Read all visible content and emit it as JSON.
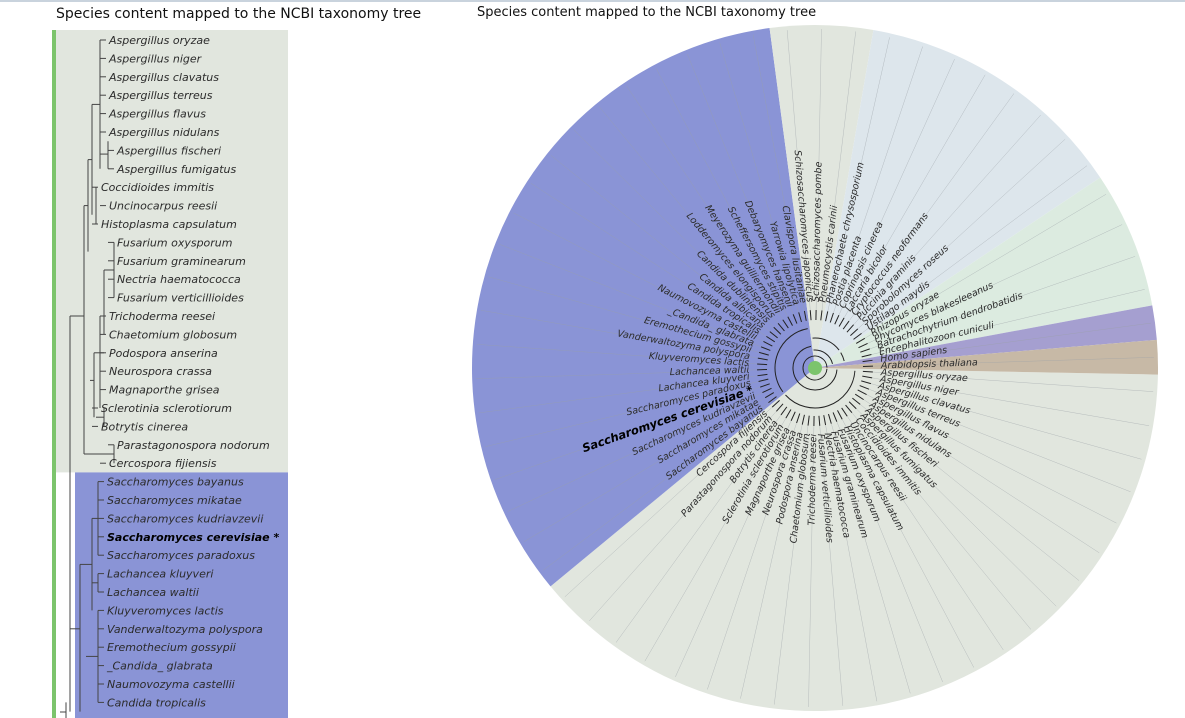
{
  "left_panel": {
    "title": "Species content mapped to the NCBI taxonomy tree",
    "clades": [
      {
        "name": "grey",
        "color": "#e1e6de"
      },
      {
        "name": "blue",
        "color": "#8a94d6"
      }
    ],
    "leaves": [
      {
        "label": "Aspergillus oryzae",
        "clade": 0,
        "depth": 0
      },
      {
        "label": "Aspergillus niger",
        "clade": 0,
        "depth": 0
      },
      {
        "label": "Aspergillus clavatus",
        "clade": 0,
        "depth": 0
      },
      {
        "label": "Aspergillus terreus",
        "clade": 0,
        "depth": 0
      },
      {
        "label": "Aspergillus flavus",
        "clade": 0,
        "depth": 0
      },
      {
        "label": "Aspergillus nidulans",
        "clade": 0,
        "depth": 0
      },
      {
        "label": "Aspergillus fischeri",
        "clade": 0,
        "depth": 1
      },
      {
        "label": "Aspergillus fumigatus",
        "clade": 0,
        "depth": 1
      },
      {
        "label": "Coccidioides immitis",
        "clade": 0,
        "depth": -1
      },
      {
        "label": "Uncinocarpus reesii",
        "clade": 0,
        "depth": 0
      },
      {
        "label": "Histoplasma capsulatum",
        "clade": 0,
        "depth": -1
      },
      {
        "label": "Fusarium oxysporum",
        "clade": 0,
        "depth": 1
      },
      {
        "label": "Fusarium graminearum",
        "clade": 0,
        "depth": 1
      },
      {
        "label": "Nectria haematococca",
        "clade": 0,
        "depth": 1
      },
      {
        "label": "Fusarium verticillioides",
        "clade": 0,
        "depth": 1
      },
      {
        "label": "Trichoderma reesei",
        "clade": 0,
        "depth": 0
      },
      {
        "label": "Chaetomium globosum",
        "clade": 0,
        "depth": 0
      },
      {
        "label": "Podospora anserina",
        "clade": 0,
        "depth": 0
      },
      {
        "label": "Neurospora crassa",
        "clade": 0,
        "depth": 0
      },
      {
        "label": "Magnaporthe grisea",
        "clade": 0,
        "depth": 0
      },
      {
        "label": "Sclerotinia sclerotiorum",
        "clade": 0,
        "depth": -1
      },
      {
        "label": "Botrytis cinerea",
        "clade": 0,
        "depth": -1
      },
      {
        "label": "Parastagonospora nodorum",
        "clade": 0,
        "depth": 1
      },
      {
        "label": "Cercospora fijiensis",
        "clade": 0,
        "depth": 0
      },
      {
        "label": "Saccharomyces bayanus",
        "clade": 1,
        "depth": 0
      },
      {
        "label": "Saccharomyces mikatae",
        "clade": 1,
        "depth": 0
      },
      {
        "label": "Saccharomyces kudriavzevii",
        "clade": 1,
        "depth": 0
      },
      {
        "label": "Saccharomyces cerevisiae *",
        "clade": 1,
        "depth": 0,
        "bold": true
      },
      {
        "label": "Saccharomyces paradoxus",
        "clade": 1,
        "depth": 0
      },
      {
        "label": "Lachancea kluyveri",
        "clade": 1,
        "depth": 0
      },
      {
        "label": "Lachancea waltii",
        "clade": 1,
        "depth": 0
      },
      {
        "label": "Kluyveromyces lactis",
        "clade": 1,
        "depth": 0
      },
      {
        "label": "Vanderwaltozyma polyspora",
        "clade": 1,
        "depth": 0
      },
      {
        "label": "Eremothecium gossypii",
        "clade": 1,
        "depth": 0
      },
      {
        "label": "_Candida_ glabrata",
        "clade": 1,
        "depth": 0
      },
      {
        "label": "Naumovozyma castellii",
        "clade": 1,
        "depth": 0
      },
      {
        "label": "Candida tropicalis",
        "clade": 1,
        "depth": 0
      }
    ]
  },
  "radial_panel": {
    "title": "Species content mapped to the NCBI taxonomy tree",
    "sectors": [
      {
        "name": "yeast-clade",
        "color": "#8a94d6"
      },
      {
        "name": "fission-yeast-clade",
        "color": "#e1e6de"
      },
      {
        "name": "basidiomycete-clade",
        "color": "#dde6ec"
      },
      {
        "name": "basal-fungi-clade",
        "color": "#dcebe0"
      },
      {
        "name": "human",
        "color": "#a59fd0"
      },
      {
        "name": "plant",
        "color": "#c7b9a6"
      },
      {
        "name": "pezizomycotina-clade",
        "color": "#e1e6de"
      }
    ],
    "leaves": [
      {
        "label": "Aspergillus oryzae",
        "sector": 6
      },
      {
        "label": "Aspergillus niger",
        "sector": 6
      },
      {
        "label": "Aspergillus clavatus",
        "sector": 6
      },
      {
        "label": "Aspergillus terreus",
        "sector": 6
      },
      {
        "label": "Aspergillus flavus",
        "sector": 6
      },
      {
        "label": "Aspergillus nidulans",
        "sector": 6
      },
      {
        "label": "Aspergillus fischeri",
        "sector": 6
      },
      {
        "label": "Aspergillus fumigatus",
        "sector": 6
      },
      {
        "label": "Coccidioides immitis",
        "sector": 6
      },
      {
        "label": "Uncinocarpus reesii",
        "sector": 6
      },
      {
        "label": "Histoplasma capsulatum",
        "sector": 6
      },
      {
        "label": "Fusarium oxysporum",
        "sector": 6
      },
      {
        "label": "Fusarium graminearum",
        "sector": 6
      },
      {
        "label": "Nectria haematococca",
        "sector": 6
      },
      {
        "label": "Fusarium verticillioides",
        "sector": 6
      },
      {
        "label": "Trichoderma reesei",
        "sector": 6
      },
      {
        "label": "Chaetomium globosum",
        "sector": 6
      },
      {
        "label": "Podospora anserina",
        "sector": 6
      },
      {
        "label": "Neurospora crassa",
        "sector": 6
      },
      {
        "label": "Magnaporthe grisea",
        "sector": 6
      },
      {
        "label": "Sclerotinia sclerotiorum",
        "sector": 6
      },
      {
        "label": "Botrytis cinerea",
        "sector": 6
      },
      {
        "label": "Parastagonospora nodorum",
        "sector": 6
      },
      {
        "label": "Cercospora fijiensis",
        "sector": 6
      },
      {
        "label": "Saccharomyces bayanus",
        "sector": 0
      },
      {
        "label": "Saccharomyces mikatae",
        "sector": 0
      },
      {
        "label": "Saccharomyces kudriavzevii",
        "sector": 0
      },
      {
        "label": "Saccharomyces cerevisiae *",
        "sector": 0,
        "bold": true
      },
      {
        "label": "Saccharomyces paradoxus",
        "sector": 0
      },
      {
        "label": "Lachancea kluyveri",
        "sector": 0
      },
      {
        "label": "Lachancea waltii",
        "sector": 0
      },
      {
        "label": "Kluyveromyces lactis",
        "sector": 0
      },
      {
        "label": "Vanderwaltozyma polyspora",
        "sector": 0
      },
      {
        "label": "Eremothecium gossypii",
        "sector": 0
      },
      {
        "label": "_Candida_ glabrata",
        "sector": 0
      },
      {
        "label": "Naumovozyma castellii",
        "sector": 0
      },
      {
        "label": "Candida tropicalis",
        "sector": 0
      },
      {
        "label": "Candida albicans",
        "sector": 0
      },
      {
        "label": "Candida dubliniensis",
        "sector": 0
      },
      {
        "label": "Lodderomyces elongisporus",
        "sector": 0
      },
      {
        "label": "Meyerozyma guilliermondii",
        "sector": 0
      },
      {
        "label": "Scheffersomyces stipitis",
        "sector": 0
      },
      {
        "label": "Debaryomyces hansenii",
        "sector": 0
      },
      {
        "label": "Yarrowia lipolytica",
        "sector": 0
      },
      {
        "label": "Clavispora lusitaniae",
        "sector": 0
      },
      {
        "label": "Schizosaccharomyces japonicus",
        "sector": 1
      },
      {
        "label": "Schizosaccharomyces pombe",
        "sector": 1
      },
      {
        "label": "Pneumocystis carinii",
        "sector": 1
      },
      {
        "label": "Phanerochaete chrysosporium",
        "sector": 2
      },
      {
        "label": "Postia placenta",
        "sector": 2
      },
      {
        "label": "Coprinopsis cinerea",
        "sector": 2
      },
      {
        "label": "Laccaria bicolor",
        "sector": 2
      },
      {
        "label": "Cryptococcus neoformans",
        "sector": 2
      },
      {
        "label": "Puccinia graminis",
        "sector": 2
      },
      {
        "label": "Sporobolomyces roseus",
        "sector": 2
      },
      {
        "label": "Ustilago maydis",
        "sector": 2
      },
      {
        "label": "Rhizopus oryzae",
        "sector": 3
      },
      {
        "label": "Phycomyces blakesleeanus",
        "sector": 3
      },
      {
        "label": "Batrachochytrium dendrobatidis",
        "sector": 3
      },
      {
        "label": "Encephalitozoon cuniculi",
        "sector": 3
      },
      {
        "label": "Homo sapiens",
        "sector": 4
      },
      {
        "label": "Arabidopsis thaliana",
        "sector": 5
      }
    ]
  }
}
